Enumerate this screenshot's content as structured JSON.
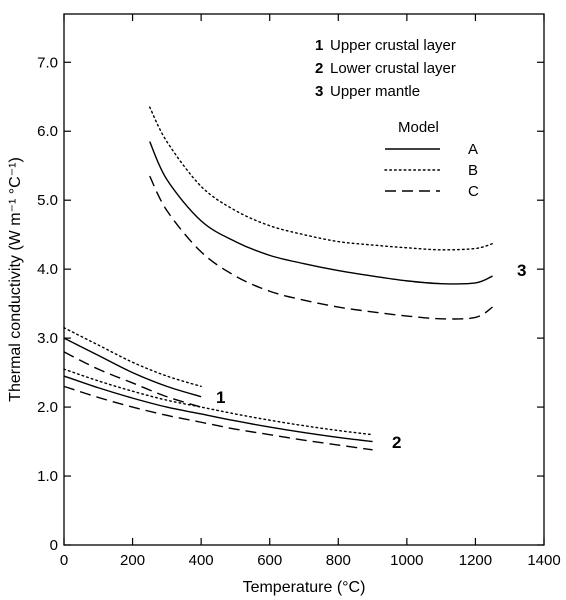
{
  "chart_data": {
    "type": "line",
    "xlabel": "Temperature (°C)",
    "ylabel": "Thermal conductivity (W m⁻¹ °C⁻¹)",
    "xlim": [
      0,
      1400
    ],
    "ylim": [
      0,
      7.7
    ],
    "x_ticks": [
      0,
      200,
      400,
      600,
      800,
      1000,
      1200,
      1400
    ],
    "x_tick_labels": [
      "0",
      "200",
      "400",
      "600",
      "800",
      "1000",
      "1200",
      "1400"
    ],
    "y_ticks": [
      0,
      1,
      2,
      3,
      4,
      5,
      6,
      7
    ],
    "y_tick_labels": [
      "0",
      "1.0",
      "2.0",
      "3.0",
      "4.0",
      "5.0",
      "6.0",
      "7.0"
    ],
    "grid": false,
    "legend": {
      "placement": "top-right",
      "layers": [
        {
          "number": "1",
          "label": "Upper crustal layer"
        },
        {
          "number": "2",
          "label": "Lower crustal layer"
        },
        {
          "number": "3",
          "label": "Upper mantle"
        }
      ],
      "model_title": "Model",
      "models": [
        {
          "key": "A",
          "style": "solid"
        },
        {
          "key": "B",
          "style": "dotted"
        },
        {
          "key": "C",
          "style": "dashed"
        }
      ]
    },
    "curve_labels": [
      {
        "text": "1",
        "layer": 1
      },
      {
        "text": "2",
        "layer": 2
      },
      {
        "text": "3",
        "layer": 3
      }
    ],
    "series": [
      {
        "layer": 1,
        "model": "A",
        "x": [
          0,
          100,
          200,
          300,
          400
        ],
        "y": [
          3.0,
          2.75,
          2.5,
          2.3,
          2.15
        ]
      },
      {
        "layer": 1,
        "model": "B",
        "x": [
          0,
          100,
          200,
          300,
          400
        ],
        "y": [
          3.15,
          2.9,
          2.65,
          2.45,
          2.3
        ]
      },
      {
        "layer": 1,
        "model": "C",
        "x": [
          0,
          100,
          200,
          300,
          400
        ],
        "y": [
          2.8,
          2.55,
          2.35,
          2.15,
          2.0
        ]
      },
      {
        "layer": 2,
        "model": "A",
        "x": [
          0,
          100,
          200,
          300,
          400,
          500,
          600,
          700,
          800,
          900
        ],
        "y": [
          2.45,
          2.28,
          2.13,
          2.0,
          1.9,
          1.8,
          1.71,
          1.63,
          1.56,
          1.5
        ]
      },
      {
        "layer": 2,
        "model": "B",
        "x": [
          0,
          100,
          200,
          300,
          400,
          500,
          600,
          700,
          800,
          900
        ],
        "y": [
          2.55,
          2.38,
          2.23,
          2.1,
          2.0,
          1.9,
          1.81,
          1.73,
          1.66,
          1.6
        ]
      },
      {
        "layer": 2,
        "model": "C",
        "x": [
          0,
          100,
          200,
          300,
          400,
          500,
          600,
          700,
          800,
          900
        ],
        "y": [
          2.3,
          2.14,
          2.0,
          1.88,
          1.78,
          1.68,
          1.6,
          1.52,
          1.45,
          1.38
        ]
      },
      {
        "layer": 3,
        "model": "A",
        "x": [
          250,
          300,
          400,
          500,
          600,
          700,
          800,
          900,
          1000,
          1100,
          1200,
          1250
        ],
        "y": [
          5.85,
          5.3,
          4.7,
          4.4,
          4.2,
          4.08,
          3.98,
          3.9,
          3.83,
          3.79,
          3.8,
          3.9
        ]
      },
      {
        "layer": 3,
        "model": "B",
        "x": [
          250,
          300,
          400,
          500,
          600,
          700,
          800,
          900,
          1000,
          1100,
          1200,
          1250
        ],
        "y": [
          6.35,
          5.85,
          5.2,
          4.85,
          4.63,
          4.5,
          4.4,
          4.35,
          4.31,
          4.28,
          4.3,
          4.37
        ]
      },
      {
        "layer": 3,
        "model": "C",
        "x": [
          250,
          300,
          400,
          500,
          600,
          700,
          800,
          900,
          1000,
          1100,
          1200,
          1250
        ],
        "y": [
          5.35,
          4.85,
          4.25,
          3.9,
          3.68,
          3.55,
          3.45,
          3.38,
          3.32,
          3.28,
          3.3,
          3.45
        ]
      }
    ]
  }
}
